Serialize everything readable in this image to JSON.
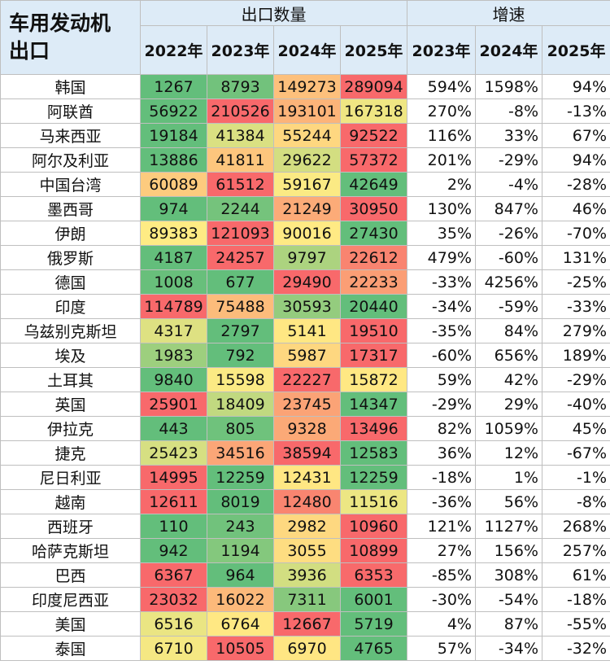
{
  "header": {
    "title_lines": [
      "车用发动机",
      "出口"
    ],
    "group1": "出口数量",
    "group2": "增速",
    "years1": [
      "2022年",
      "2023年",
      "2024年",
      "2025年"
    ],
    "years2": [
      "2023年",
      "2024年",
      "2025年"
    ]
  },
  "color_scale": {
    "low": "#63be7b",
    "mid": "#ffeb84",
    "high": "#f8696b"
  },
  "rows": [
    [
      "韩国",
      1267,
      8793,
      149273,
      289094,
      "594%",
      "1598%",
      "94%"
    ],
    [
      "阿联酋",
      56922,
      210526,
      193101,
      167318,
      "270%",
      "-8%",
      "-13%"
    ],
    [
      "马来西亚",
      19184,
      41384,
      55244,
      92522,
      "116%",
      "33%",
      "67%"
    ],
    [
      "阿尔及利亚",
      13886,
      41811,
      29622,
      57372,
      "201%",
      "-29%",
      "94%"
    ],
    [
      "中国台湾",
      60089,
      61512,
      59167,
      42649,
      "2%",
      "-4%",
      "-28%"
    ],
    [
      "墨西哥",
      974,
      2244,
      21249,
      30950,
      "130%",
      "847%",
      "46%"
    ],
    [
      "伊朗",
      89383,
      121093,
      90016,
      27430,
      "35%",
      "-26%",
      "-70%"
    ],
    [
      "俄罗斯",
      4187,
      24257,
      9797,
      22612,
      "479%",
      "-60%",
      "131%"
    ],
    [
      "德国",
      1008,
      677,
      29490,
      22233,
      "-33%",
      "4256%",
      "-25%"
    ],
    [
      "印度",
      114789,
      75488,
      30593,
      20440,
      "-34%",
      "-59%",
      "-33%"
    ],
    [
      "乌兹别克斯坦",
      4317,
      2797,
      5141,
      19510,
      "-35%",
      "84%",
      "279%"
    ],
    [
      "埃及",
      1983,
      792,
      5987,
      17317,
      "-60%",
      "656%",
      "189%"
    ],
    [
      "土耳其",
      9840,
      15598,
      22227,
      15872,
      "59%",
      "42%",
      "-29%"
    ],
    [
      "英国",
      25901,
      18409,
      23745,
      14347,
      "-29%",
      "29%",
      "-40%"
    ],
    [
      "伊拉克",
      443,
      805,
      9328,
      13496,
      "82%",
      "1059%",
      "45%"
    ],
    [
      "捷克",
      25423,
      34516,
      38594,
      12583,
      "36%",
      "12%",
      "-67%"
    ],
    [
      "尼日利亚",
      14995,
      12259,
      12431,
      12259,
      "-18%",
      "1%",
      "-1%"
    ],
    [
      "越南",
      12611,
      8019,
      12480,
      11516,
      "-36%",
      "56%",
      "-8%"
    ],
    [
      "西班牙",
      110,
      243,
      2982,
      10960,
      "121%",
      "1127%",
      "268%"
    ],
    [
      "哈萨克斯坦",
      942,
      1194,
      3055,
      10899,
      "27%",
      "156%",
      "257%"
    ],
    [
      "巴西",
      6367,
      964,
      3936,
      6353,
      "-85%",
      "308%",
      "61%"
    ],
    [
      "印度尼西亚",
      23032,
      16022,
      7311,
      6001,
      "-30%",
      "-54%",
      "-18%"
    ],
    [
      "美国",
      6516,
      6764,
      12667,
      5719,
      "4%",
      "87%",
      "-55%"
    ],
    [
      "泰国",
      6710,
      10505,
      6970,
      4765,
      "57%",
      "-34%",
      "-32%"
    ]
  ]
}
